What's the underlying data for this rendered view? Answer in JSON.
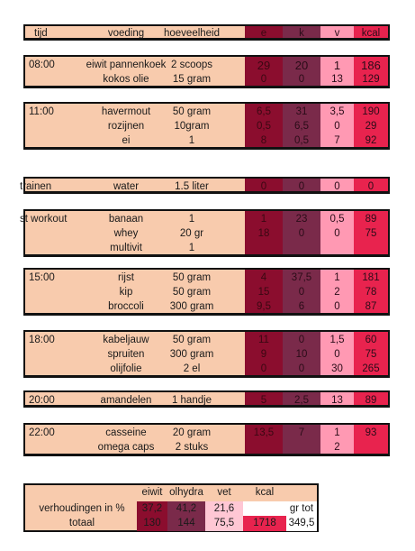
{
  "header": {
    "tijd": "tijd",
    "voeding": "voeding",
    "hoeveelheid": "hoeveelheid",
    "e": "e",
    "k": "k",
    "v": "v",
    "kcal": "kcal"
  },
  "meals": [
    {
      "time": "08:00",
      "rows": [
        {
          "food": "eiwit pannenkoek",
          "qty": "2 scoops",
          "e": "29",
          "k": "20",
          "v": "1",
          "kcal": "186"
        },
        {
          "food": "kokos olie",
          "qty": "15 gram",
          "e": "0",
          "k": "0",
          "v": "13",
          "kcal": "129"
        }
      ]
    },
    {
      "time": "11:00",
      "rows": [
        {
          "food": "havermout",
          "qty": "50 gram",
          "e": "6,5",
          "k": "31",
          "v": "3,5",
          "kcal": "190"
        },
        {
          "food": "rozijnen",
          "qty": "10gram",
          "e": "0,5",
          "k": "6,5",
          "v": "0",
          "kcal": "29"
        },
        {
          "food": "ei",
          "qty": "1",
          "e": "8",
          "k": "0,5",
          "v": "7",
          "kcal": "92"
        }
      ]
    },
    {
      "time": "trainen",
      "rows": [
        {
          "food": "water",
          "qty": "1.5 liter",
          "e": "0",
          "k": "0",
          "v": "0",
          "kcal": "0"
        }
      ]
    },
    {
      "time": "st workout",
      "rows": [
        {
          "food": "banaan",
          "qty": "1",
          "e": "1",
          "k": "23",
          "v": "0,5",
          "kcal": "89"
        },
        {
          "food": "whey",
          "qty": "20 gr",
          "e": "18",
          "k": "0",
          "v": "0",
          "kcal": "75"
        },
        {
          "food": "multivit",
          "qty": "1",
          "e": "",
          "k": "",
          "v": "",
          "kcal": ""
        }
      ]
    },
    {
      "time": "15:00",
      "rows": [
        {
          "food": "rijst",
          "qty": "50 gram",
          "e": "4",
          "k": "37,5",
          "v": "1",
          "kcal": "181"
        },
        {
          "food": "kip",
          "qty": "50 gram",
          "e": "15",
          "k": "0",
          "v": "2",
          "kcal": "78"
        },
        {
          "food": "broccoli",
          "qty": "300 gram",
          "e": "9,5",
          "k": "6",
          "v": "0",
          "kcal": "87"
        }
      ]
    },
    {
      "time": "18:00",
      "rows": [
        {
          "food": "kabeljauw",
          "qty": "50 gram",
          "e": "11",
          "k": "0",
          "v": "1,5",
          "kcal": "60"
        },
        {
          "food": "spruiten",
          "qty": "300 gram",
          "e": "9",
          "k": "10",
          "v": "0",
          "kcal": "75"
        },
        {
          "food": "olijfolie",
          "qty": "2 el",
          "e": "0",
          "k": "0",
          "v": "30",
          "kcal": "265"
        }
      ]
    },
    {
      "time": "20:00",
      "rows": [
        {
          "food": "amandelen",
          "qty": "1 handje",
          "e": "5",
          "k": "2,5",
          "v": "13",
          "kcal": "89"
        }
      ]
    },
    {
      "time": "22:00",
      "rows": [
        {
          "food": "casseine",
          "qty": "20 gram",
          "e": "13,5",
          "k": "7",
          "v": "1",
          "kcal": "93"
        },
        {
          "food": "omega caps",
          "qty": "2 stuks",
          "e": "",
          "k": "",
          "v": "2",
          "kcal": ""
        }
      ]
    }
  ],
  "summary": {
    "headers": {
      "eiwit": "eiwit",
      "kh": "olhydra",
      "vet": "vet",
      "kcal": "kcal"
    },
    "ratio_label": "verhoudingen in %",
    "total_label": "totaal",
    "ratio": {
      "e": "37,2",
      "k": "41,2",
      "v": "21,6",
      "kcal": "",
      "extra": "gr tot"
    },
    "total": {
      "e": "130",
      "k": "144",
      "v": "75,5",
      "kcal": "1718",
      "extra": "349,5"
    }
  },
  "colors": {
    "peach": "#f8cbad",
    "eiwit": "#8b0d2e",
    "kh": "#7a2a4a",
    "vet": "#ff99b3",
    "kcal": "#e8234e"
  }
}
